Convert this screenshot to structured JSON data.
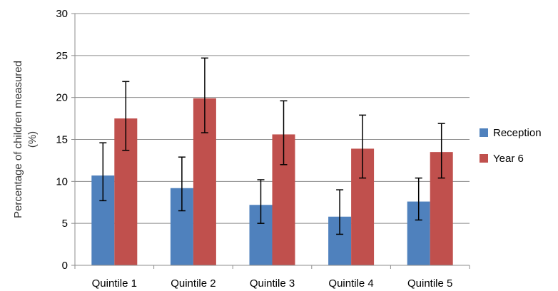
{
  "chart_data": {
    "type": "bar",
    "title": "",
    "xlabel": "",
    "ylabel": "Percentage of children measured (%)",
    "ylabel_lines": [
      "Percentage of children measured",
      "(%)"
    ],
    "categories": [
      "Quintile 1",
      "Quintile 2",
      "Quintile 3",
      "Quintile 4",
      "Quintile 5"
    ],
    "ylim": [
      0,
      30
    ],
    "yticks": [
      0,
      5,
      10,
      15,
      20,
      25,
      30
    ],
    "grid": true,
    "legend_position": "right",
    "series": [
      {
        "name": "Reception",
        "color": "#4F81BD",
        "values": [
          10.7,
          9.2,
          7.2,
          5.8,
          7.6
        ],
        "error_low": [
          7.7,
          6.5,
          5.0,
          3.7,
          5.4
        ],
        "error_high": [
          14.6,
          12.9,
          10.2,
          9.0,
          10.4
        ]
      },
      {
        "name": "Year 6",
        "color": "#C0504D",
        "values": [
          17.5,
          19.9,
          15.6,
          13.9,
          13.5
        ],
        "error_low": [
          13.7,
          15.8,
          12.0,
          10.4,
          10.4
        ],
        "error_high": [
          21.9,
          24.7,
          19.6,
          17.9,
          16.9
        ]
      }
    ]
  }
}
